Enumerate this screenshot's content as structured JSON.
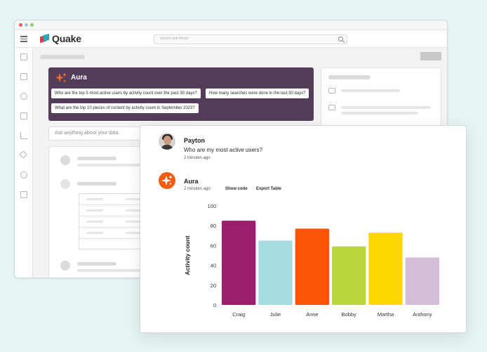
{
  "app": {
    "name": "Quake",
    "search_placeholder": "Search and things"
  },
  "aura_panel": {
    "title": "Aura",
    "suggestions": [
      "Who are the top 5 most active users by activity count over the past 30 days?",
      "How many searches were done in the last 30 days?",
      "What are the top 10 pieces of content by activity count in September 2023?"
    ]
  },
  "ask_input": {
    "placeholder": "Ask anything about your data."
  },
  "chat": {
    "user_message": {
      "name": "Payton",
      "text": "Who are my most active users?",
      "time": "2 minutes ago"
    },
    "aura_message": {
      "name": "Aura",
      "time": "2 minutes ago",
      "show_code_label": "Show code",
      "export_label": "Export Table"
    }
  },
  "colors": {
    "aura_panel_bg": "#533d5a",
    "aura_accent": "#f25c10"
  },
  "icons": [
    "hamburger-icon",
    "search-icon",
    "sparkle-icon",
    "home-icon",
    "report-icon",
    "tool-icon",
    "inbox-icon",
    "chart-icon",
    "send-icon",
    "settings-icon",
    "export-icon"
  ],
  "chart_data": {
    "type": "bar",
    "categories": [
      "Craig",
      "Julie",
      "Anne",
      "Bobby",
      "Martha",
      "Anthony"
    ],
    "values": [
      85,
      65,
      77,
      59,
      73,
      48
    ],
    "colors": [
      "#9b1e6e",
      "#a6dbe0",
      "#fb5607",
      "#b9d53c",
      "#fed700",
      "#d4bfd9"
    ],
    "title": "",
    "xlabel": "",
    "ylabel": "Activity count",
    "ylim": [
      0,
      100
    ],
    "yticks": [
      0,
      20,
      40,
      60,
      80,
      100
    ],
    "grid": false,
    "legend": "none"
  }
}
